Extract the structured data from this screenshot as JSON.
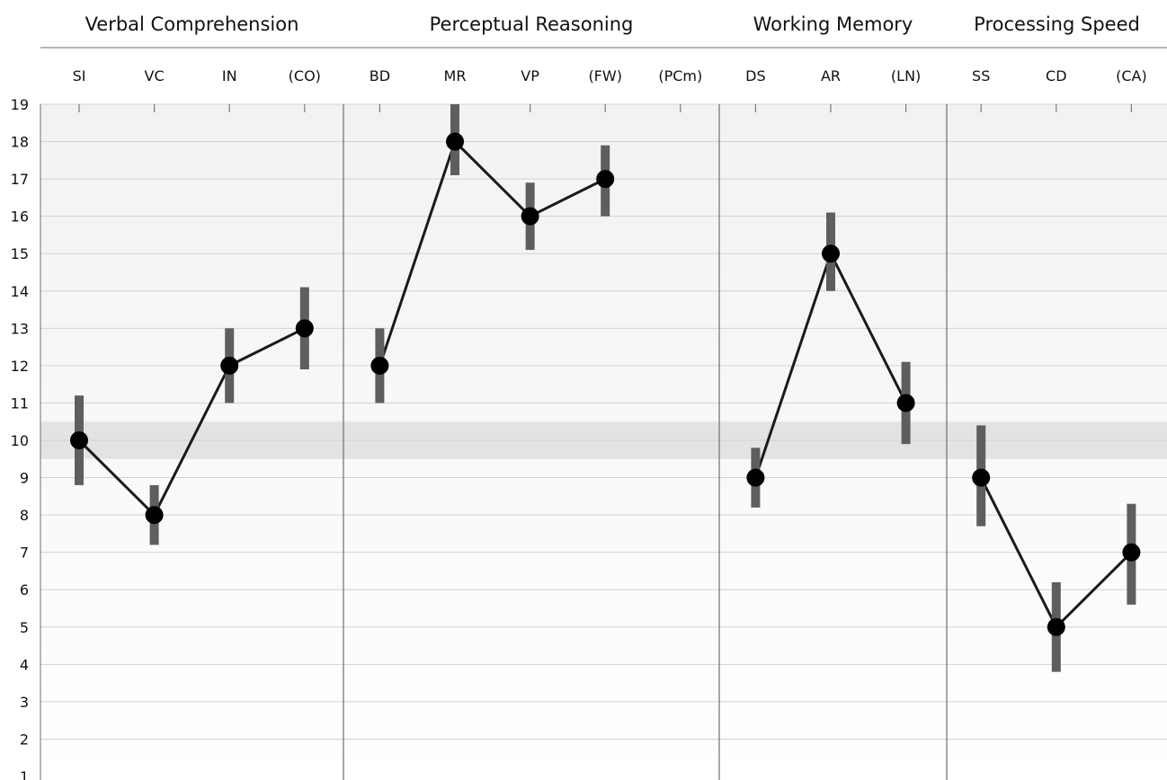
{
  "chart_data": {
    "type": "line",
    "ylim": [
      1,
      19
    ],
    "yticks": [
      1,
      2,
      3,
      4,
      5,
      6,
      7,
      8,
      9,
      10,
      11,
      12,
      13,
      14,
      15,
      16,
      17,
      18,
      19
    ],
    "reference_band": [
      9.5,
      10.5
    ],
    "grid": true,
    "groups": [
      {
        "name": "Verbal Comprehension",
        "subtests": [
          {
            "label": "SI",
            "value": 10,
            "ci": [
              8.8,
              11.2
            ]
          },
          {
            "label": "VC",
            "value": 8,
            "ci": [
              7.2,
              8.8
            ]
          },
          {
            "label": "IN",
            "value": 12,
            "ci": [
              11.0,
              13.0
            ]
          },
          {
            "label": "(CO)",
            "value": 13,
            "ci": [
              11.9,
              14.1
            ]
          }
        ]
      },
      {
        "name": "Perceptual Reasoning",
        "subtests": [
          {
            "label": "BD",
            "value": 12,
            "ci": [
              11.0,
              13.0
            ]
          },
          {
            "label": "MR",
            "value": 18,
            "ci": [
              17.1,
              19.0
            ]
          },
          {
            "label": "VP",
            "value": 16,
            "ci": [
              15.1,
              16.9
            ]
          },
          {
            "label": "(FW)",
            "value": 17,
            "ci": [
              16.0,
              17.9
            ]
          },
          {
            "label": "(PCm)",
            "value": null,
            "ci": null
          }
        ]
      },
      {
        "name": "Working Memory",
        "subtests": [
          {
            "label": "DS",
            "value": 9,
            "ci": [
              8.2,
              9.8
            ]
          },
          {
            "label": "AR",
            "value": 15,
            "ci": [
              14.0,
              16.1
            ]
          },
          {
            "label": "(LN)",
            "value": 11,
            "ci": [
              9.9,
              12.1
            ]
          }
        ]
      },
      {
        "name": "Processing Speed",
        "subtests": [
          {
            "label": "SS",
            "value": 9,
            "ci": [
              7.7,
              10.4
            ]
          },
          {
            "label": "CD",
            "value": 5,
            "ci": [
              3.8,
              6.2
            ]
          },
          {
            "label": "(CA)",
            "value": 7,
            "ci": [
              5.6,
              8.3
            ]
          }
        ]
      }
    ],
    "colors": {
      "line": "#1a1a1a",
      "point": "#000000",
      "error_bar": "#5e5e5e",
      "band": "#e3e3e3",
      "grid": "#d2d2d2",
      "divider": "#6e6e6e"
    }
  }
}
